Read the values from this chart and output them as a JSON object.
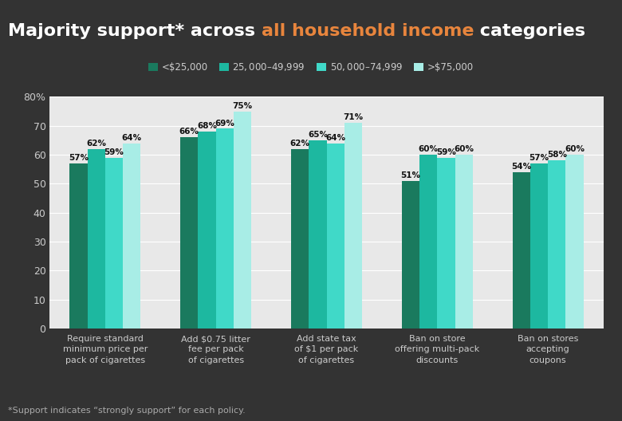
{
  "title_parts": [
    {
      "text": "Majority support* across ",
      "color": "#ffffff"
    },
    {
      "text": "all household income",
      "color": "#e8853d"
    },
    {
      "text": " categories",
      "color": "#ffffff"
    }
  ],
  "legend_labels": [
    "<$25,000",
    "$25,000–$49,999",
    "$50,000–$74,999",
    ">$75,000"
  ],
  "bar_colors": [
    "#1a7a5e",
    "#1db8a0",
    "#40d9c8",
    "#a8ede6"
  ],
  "categories": [
    "Require standard\nminimum price per\npack of cigarettes",
    "Add $0.75 litter\nfee per pack\nof cigarettes",
    "Add state tax\nof $1 per pack\nof cigarettes",
    "Ban on store\noffering multi-pack\ndiscounts",
    "Ban on stores\naccepting\ncoupons"
  ],
  "values": [
    [
      57,
      62,
      59,
      64
    ],
    [
      66,
      68,
      69,
      75
    ],
    [
      62,
      65,
      64,
      71
    ],
    [
      51,
      60,
      59,
      60
    ],
    [
      54,
      57,
      58,
      60
    ]
  ],
  "ylim": [
    0,
    80
  ],
  "yticks": [
    0,
    10,
    20,
    30,
    40,
    50,
    60,
    70,
    80
  ],
  "background_color": "#333333",
  "plot_background_color": "#e8e8e8",
  "grid_color": "#ffffff",
  "title_fontsize": 16,
  "bar_label_fontsize": 7.5,
  "axis_label_color": "#cccccc",
  "tick_label_color": "#cccccc",
  "footnote": "*Support indicates “strongly support” for each policy.",
  "footnote_color": "#aaaaaa"
}
